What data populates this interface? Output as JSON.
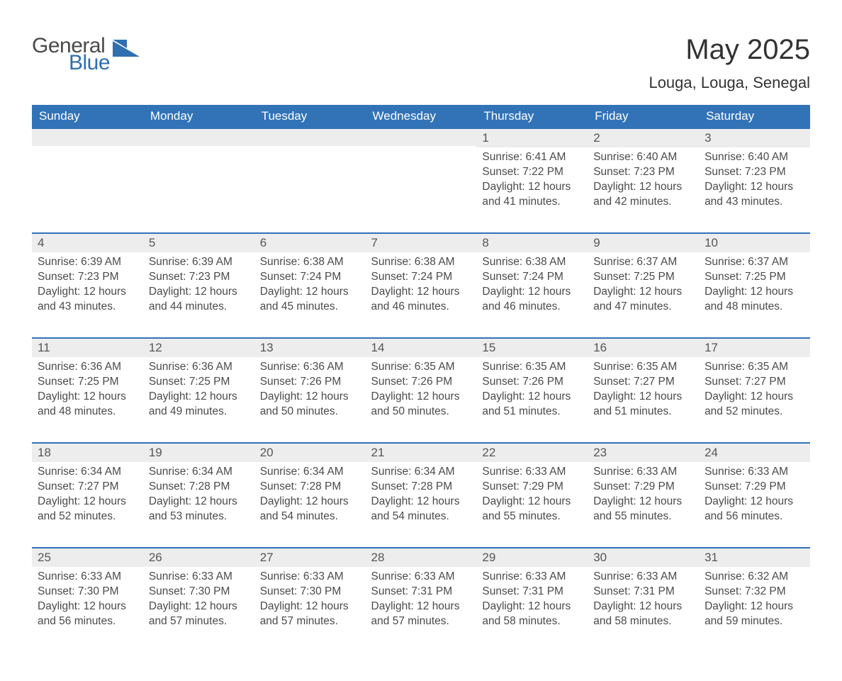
{
  "brand": {
    "line1": "General",
    "line2": "Blue",
    "logo_color": "#2f6fb0",
    "text_color": "#4a4a4a"
  },
  "title": "May 2025",
  "location": "Louga, Louga, Senegal",
  "colors": {
    "header_bg": "#3273b8",
    "header_text": "#ffffff",
    "daynum_bg": "#ededed",
    "row_border": "#3273b8",
    "body_text": "#4a4a4a",
    "background": "#ffffff"
  },
  "typography": {
    "title_fontsize": 40,
    "location_fontsize": 22,
    "header_fontsize": 17,
    "daynum_fontsize": 17,
    "body_fontsize": 15.5
  },
  "layout": {
    "columns": 7,
    "rows": 5,
    "first_day_column_index": 4
  },
  "days_of_week": [
    "Sunday",
    "Monday",
    "Tuesday",
    "Wednesday",
    "Thursday",
    "Friday",
    "Saturday"
  ],
  "labels": {
    "sunrise": "Sunrise:",
    "sunset": "Sunset:",
    "daylight": "Daylight:"
  },
  "weeks": [
    [
      null,
      null,
      null,
      null,
      {
        "d": "1",
        "sunrise": "6:41 AM",
        "sunset": "7:22 PM",
        "daylight": "12 hours and 41 minutes."
      },
      {
        "d": "2",
        "sunrise": "6:40 AM",
        "sunset": "7:23 PM",
        "daylight": "12 hours and 42 minutes."
      },
      {
        "d": "3",
        "sunrise": "6:40 AM",
        "sunset": "7:23 PM",
        "daylight": "12 hours and 43 minutes."
      }
    ],
    [
      {
        "d": "4",
        "sunrise": "6:39 AM",
        "sunset": "7:23 PM",
        "daylight": "12 hours and 43 minutes."
      },
      {
        "d": "5",
        "sunrise": "6:39 AM",
        "sunset": "7:23 PM",
        "daylight": "12 hours and 44 minutes."
      },
      {
        "d": "6",
        "sunrise": "6:38 AM",
        "sunset": "7:24 PM",
        "daylight": "12 hours and 45 minutes."
      },
      {
        "d": "7",
        "sunrise": "6:38 AM",
        "sunset": "7:24 PM",
        "daylight": "12 hours and 46 minutes."
      },
      {
        "d": "8",
        "sunrise": "6:38 AM",
        "sunset": "7:24 PM",
        "daylight": "12 hours and 46 minutes."
      },
      {
        "d": "9",
        "sunrise": "6:37 AM",
        "sunset": "7:25 PM",
        "daylight": "12 hours and 47 minutes."
      },
      {
        "d": "10",
        "sunrise": "6:37 AM",
        "sunset": "7:25 PM",
        "daylight": "12 hours and 48 minutes."
      }
    ],
    [
      {
        "d": "11",
        "sunrise": "6:36 AM",
        "sunset": "7:25 PM",
        "daylight": "12 hours and 48 minutes."
      },
      {
        "d": "12",
        "sunrise": "6:36 AM",
        "sunset": "7:25 PM",
        "daylight": "12 hours and 49 minutes."
      },
      {
        "d": "13",
        "sunrise": "6:36 AM",
        "sunset": "7:26 PM",
        "daylight": "12 hours and 50 minutes."
      },
      {
        "d": "14",
        "sunrise": "6:35 AM",
        "sunset": "7:26 PM",
        "daylight": "12 hours and 50 minutes."
      },
      {
        "d": "15",
        "sunrise": "6:35 AM",
        "sunset": "7:26 PM",
        "daylight": "12 hours and 51 minutes."
      },
      {
        "d": "16",
        "sunrise": "6:35 AM",
        "sunset": "7:27 PM",
        "daylight": "12 hours and 51 minutes."
      },
      {
        "d": "17",
        "sunrise": "6:35 AM",
        "sunset": "7:27 PM",
        "daylight": "12 hours and 52 minutes."
      }
    ],
    [
      {
        "d": "18",
        "sunrise": "6:34 AM",
        "sunset": "7:27 PM",
        "daylight": "12 hours and 52 minutes."
      },
      {
        "d": "19",
        "sunrise": "6:34 AM",
        "sunset": "7:28 PM",
        "daylight": "12 hours and 53 minutes."
      },
      {
        "d": "20",
        "sunrise": "6:34 AM",
        "sunset": "7:28 PM",
        "daylight": "12 hours and 54 minutes."
      },
      {
        "d": "21",
        "sunrise": "6:34 AM",
        "sunset": "7:28 PM",
        "daylight": "12 hours and 54 minutes."
      },
      {
        "d": "22",
        "sunrise": "6:33 AM",
        "sunset": "7:29 PM",
        "daylight": "12 hours and 55 minutes."
      },
      {
        "d": "23",
        "sunrise": "6:33 AM",
        "sunset": "7:29 PM",
        "daylight": "12 hours and 55 minutes."
      },
      {
        "d": "24",
        "sunrise": "6:33 AM",
        "sunset": "7:29 PM",
        "daylight": "12 hours and 56 minutes."
      }
    ],
    [
      {
        "d": "25",
        "sunrise": "6:33 AM",
        "sunset": "7:30 PM",
        "daylight": "12 hours and 56 minutes."
      },
      {
        "d": "26",
        "sunrise": "6:33 AM",
        "sunset": "7:30 PM",
        "daylight": "12 hours and 57 minutes."
      },
      {
        "d": "27",
        "sunrise": "6:33 AM",
        "sunset": "7:30 PM",
        "daylight": "12 hours and 57 minutes."
      },
      {
        "d": "28",
        "sunrise": "6:33 AM",
        "sunset": "7:31 PM",
        "daylight": "12 hours and 57 minutes."
      },
      {
        "d": "29",
        "sunrise": "6:33 AM",
        "sunset": "7:31 PM",
        "daylight": "12 hours and 58 minutes."
      },
      {
        "d": "30",
        "sunrise": "6:33 AM",
        "sunset": "7:31 PM",
        "daylight": "12 hours and 58 minutes."
      },
      {
        "d": "31",
        "sunrise": "6:32 AM",
        "sunset": "7:32 PM",
        "daylight": "12 hours and 59 minutes."
      }
    ]
  ]
}
